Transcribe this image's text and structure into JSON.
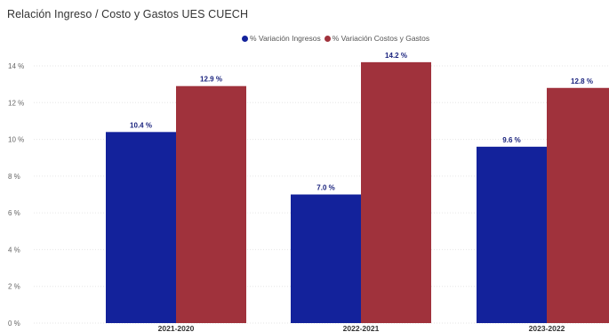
{
  "chart_data": {
    "type": "bar",
    "title": "Relación Ingreso / Costo y Gastos UES CUECH",
    "categories": [
      "2021-2020",
      "2022-2021",
      "2023-2022"
    ],
    "series": [
      {
        "name": "% Variación Ingresos",
        "color": "#13229b",
        "values": [
          10.4,
          7.0,
          9.6
        ],
        "labels": [
          "10.4 %",
          "7.0 %",
          "9.6 %"
        ]
      },
      {
        "name": "% Variación Costos y Gastos",
        "color": "#a0323c",
        "values": [
          12.9,
          14.2,
          12.8
        ],
        "labels": [
          "12.9 %",
          "14.2 %",
          "12.8 %"
        ]
      }
    ],
    "yticks": [
      "0 %",
      "2 %",
      "4 %",
      "6 %",
      "8 %",
      "10 %",
      "12 %",
      "14 %"
    ],
    "ylim": [
      0,
      14
    ],
    "xlabel": "",
    "ylabel": "",
    "grid": true,
    "legend_position": "top"
  }
}
